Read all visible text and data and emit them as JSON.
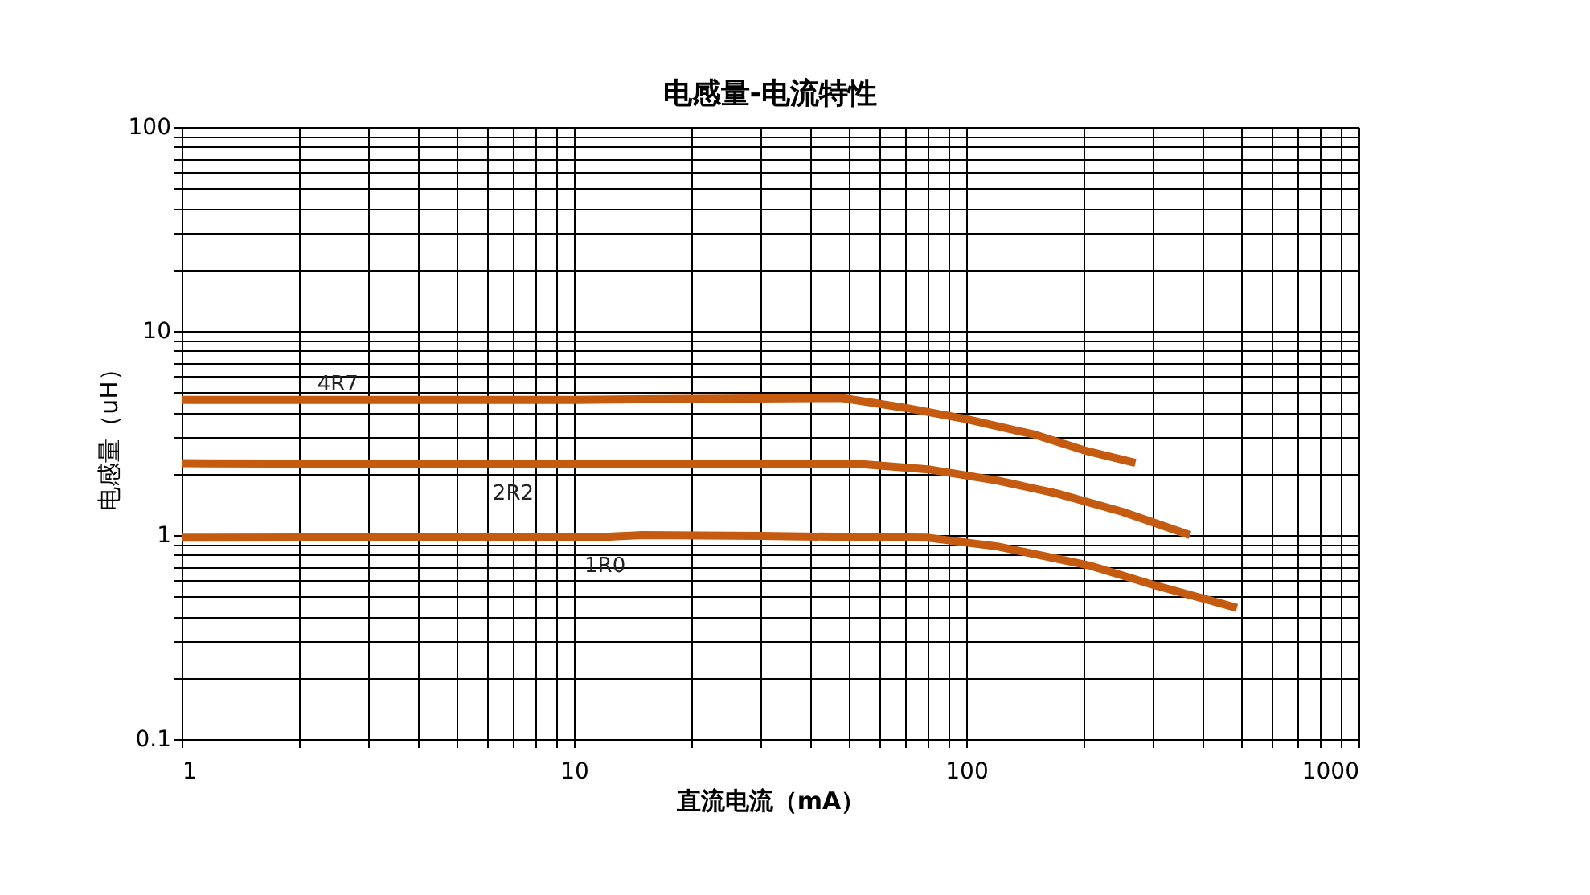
{
  "chart_data": {
    "type": "line",
    "title": "电感量-电流特性",
    "xlabel": "直流电流（mA）",
    "ylabel": "电感量（uH）",
    "log": "xy",
    "grid": true,
    "legend": false,
    "marker": "none",
    "line_style": "solid",
    "xlim": [
      1,
      1000
    ],
    "ylim": [
      0.1,
      100
    ],
    "xticks": [
      1,
      {
        "value": 2,
        "label": null
      },
      {
        "value": 3,
        "label": null
      },
      {
        "value": 4,
        "label": null
      },
      {
        "value": 5,
        "label": null
      },
      {
        "value": 6,
        "label": null
      },
      {
        "value": 7,
        "label": null
      },
      {
        "value": 8,
        "label": null
      },
      {
        "value": 9,
        "label": null
      },
      10,
      {
        "value": 20,
        "label": null
      },
      {
        "value": 30,
        "label": null
      },
      {
        "value": 40,
        "label": null
      },
      {
        "value": 50,
        "label": null
      },
      {
        "value": 60,
        "label": null
      },
      {
        "value": 70,
        "label": null
      },
      {
        "value": 80,
        "label": null
      },
      {
        "value": 90,
        "label": null
      },
      100,
      {
        "value": 200,
        "label": null
      },
      {
        "value": 300,
        "label": null
      },
      {
        "value": 400,
        "label": null
      },
      {
        "value": 500,
        "label": null
      },
      {
        "value": 600,
        "label": null
      },
      {
        "value": 700,
        "label": null
      },
      {
        "value": 800,
        "label": null
      },
      {
        "value": 900,
        "label": null
      },
      1000
    ],
    "yticks": [
      0.1,
      {
        "value": 0.2,
        "label": null
      },
      {
        "value": 0.3,
        "label": null
      },
      {
        "value": 0.4,
        "label": null
      },
      {
        "value": 0.5,
        "label": null
      },
      {
        "value": 0.6,
        "label": null
      },
      {
        "value": 0.7,
        "label": null
      },
      {
        "value": 0.8,
        "label": null
      },
      {
        "value": 0.9,
        "label": null
      },
      1,
      {
        "value": 2,
        "label": null
      },
      {
        "value": 3,
        "label": null
      },
      {
        "value": 4,
        "label": null
      },
      {
        "value": 5,
        "label": null
      },
      {
        "value": 6,
        "label": null
      },
      {
        "value": 7,
        "label": null
      },
      {
        "value": 8,
        "label": null
      },
      {
        "value": 9,
        "label": null
      },
      10,
      {
        "value": 20,
        "label": null
      },
      {
        "value": 30,
        "label": null
      },
      {
        "value": 40,
        "label": null
      },
      {
        "value": 50,
        "label": null
      },
      {
        "value": 60,
        "label": null
      },
      {
        "value": 70,
        "label": null
      },
      {
        "value": 80,
        "label": null
      },
      {
        "value": 90,
        "label": null
      },
      100
    ],
    "series": [
      {
        "name": "4R7",
        "color": "#c55a11",
        "x": [
          1,
          2.5,
          10,
          20,
          48,
          70,
          100,
          150,
          200,
          270
        ],
        "values": [
          4.6,
          4.6,
          4.6,
          4.65,
          4.7,
          4.2,
          3.7,
          3.1,
          2.6,
          2.26
        ]
      },
      {
        "name": "2R2",
        "color": "#c55a11",
        "x": [
          1,
          7,
          20,
          55,
          80,
          120,
          170,
          250,
          372
        ],
        "values": [
          2.25,
          2.22,
          2.22,
          2.22,
          2.1,
          1.85,
          1.6,
          1.3,
          1.0
        ]
      },
      {
        "name": "1R0",
        "color": "#c55a11",
        "x": [
          1,
          12,
          15,
          30,
          80,
          120,
          206,
          300,
          490
        ],
        "values": [
          0.97,
          0.98,
          1.0,
          0.99,
          0.97,
          0.88,
          0.71,
          0.57,
          0.44
        ]
      }
    ]
  }
}
